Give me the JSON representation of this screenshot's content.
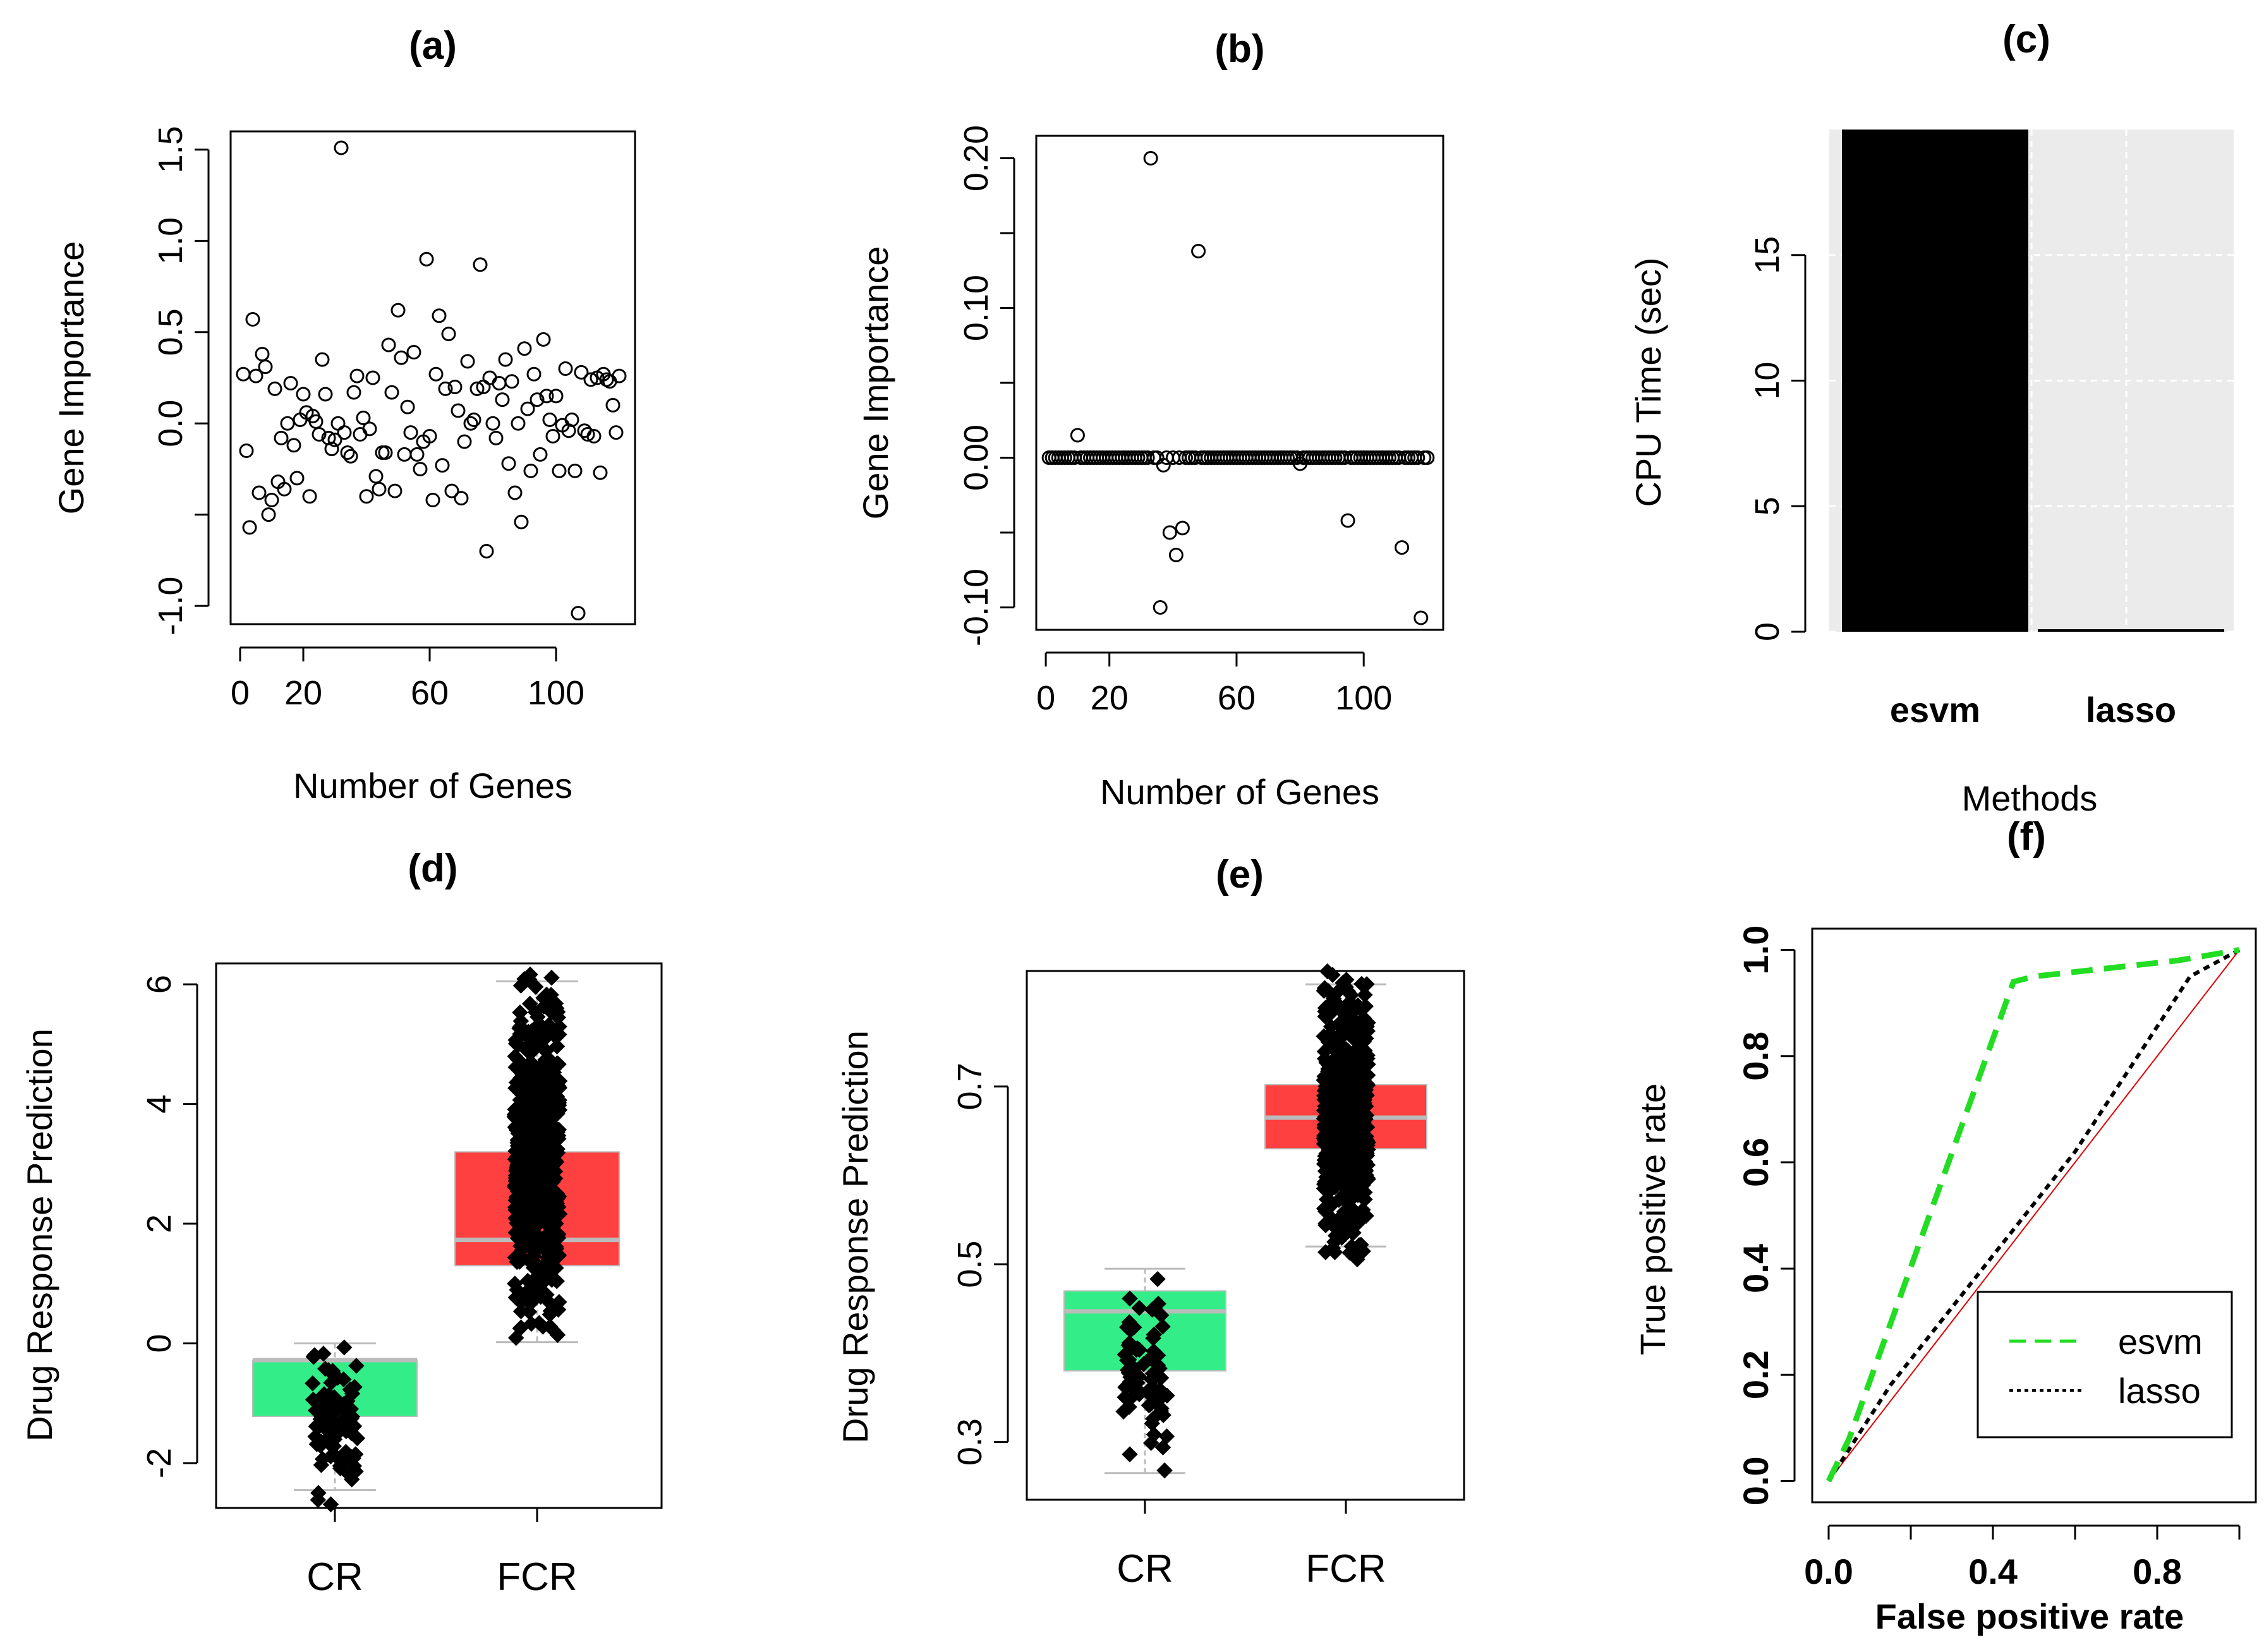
{
  "chart_data": [
    {
      "id": "a",
      "type": "scatter",
      "title": "(a)",
      "xlabel": "Number of Genes",
      "ylabel": "Gene Importance",
      "xlim": [
        -3,
        125
      ],
      "ylim": [
        -1.1,
        1.6
      ],
      "xticks": [
        0,
        20,
        60,
        100
      ],
      "xtick_labels": [
        "0",
        "20",
        "60",
        "100"
      ],
      "yticks": [
        -1.0,
        -0.5,
        0.0,
        0.5,
        1.0,
        1.5
      ],
      "ytick_labels": [
        "-1.0",
        "",
        "0.0",
        "0.5",
        "1.0",
        "1.5"
      ],
      "x": [
        1,
        2,
        3,
        4,
        5,
        6,
        7,
        8,
        9,
        10,
        11,
        12,
        13,
        14,
        15,
        16,
        17,
        18,
        19,
        20,
        21,
        22,
        23,
        24,
        25,
        26,
        27,
        28,
        29,
        30,
        31,
        32,
        33,
        34,
        35,
        36,
        37,
        38,
        39,
        40,
        41,
        42,
        43,
        44,
        45,
        46,
        47,
        48,
        49,
        50,
        51,
        52,
        53,
        54,
        55,
        56,
        57,
        58,
        59,
        60,
        61,
        62,
        63,
        64,
        65,
        66,
        67,
        68,
        69,
        70,
        71,
        72,
        73,
        74,
        75,
        76,
        77,
        78,
        79,
        80,
        81,
        82,
        83,
        84,
        85,
        86,
        87,
        88,
        89,
        90,
        91,
        92,
        93,
        94,
        95,
        96,
        97,
        98,
        99,
        100,
        101,
        102,
        103,
        104,
        105,
        106,
        107,
        108,
        109,
        110,
        111,
        112,
        113,
        114,
        115,
        116,
        117,
        118,
        119,
        120
      ],
      "y": [
        0.27,
        -0.15,
        -0.57,
        0.57,
        0.26,
        -0.38,
        0.38,
        0.31,
        -0.5,
        -0.42,
        0.19,
        -0.32,
        -0.08,
        -0.36,
        0.0,
        0.22,
        -0.12,
        -0.3,
        0.02,
        0.16,
        0.06,
        -0.4,
        0.04,
        0.01,
        -0.06,
        0.35,
        0.16,
        -0.08,
        -0.14,
        -0.09,
        0.0,
        1.51,
        -0.05,
        -0.16,
        -0.18,
        0.17,
        0.26,
        -0.06,
        0.03,
        -0.4,
        -0.03,
        0.25,
        -0.29,
        -0.36,
        -0.16,
        -0.16,
        0.43,
        0.17,
        -0.37,
        0.62,
        0.36,
        -0.17,
        0.09,
        -0.05,
        0.39,
        -0.17,
        -0.25,
        -0.1,
        0.9,
        -0.07,
        -0.42,
        0.27,
        0.59,
        -0.23,
        0.19,
        0.49,
        -0.37,
        0.2,
        0.07,
        -0.41,
        -0.1,
        0.34,
        0.0,
        0.02,
        0.19,
        0.87,
        0.2,
        -0.7,
        0.25,
        0.0,
        -0.08,
        0.22,
        0.13,
        0.35,
        -0.22,
        0.23,
        -0.38,
        0.0,
        -0.54,
        0.41,
        0.08,
        -0.26,
        0.27,
        0.13,
        -0.17,
        0.46,
        0.15,
        0.02,
        -0.07,
        0.15,
        -0.26,
        -0.01,
        0.3,
        -0.04,
        0.02,
        -0.26,
        -1.04,
        0.28,
        -0.04,
        -0.06,
        0.24,
        -0.07,
        0.25,
        -0.27,
        0.27,
        0.24,
        0.23,
        0.1,
        -0.05,
        0.26
      ]
    },
    {
      "id": "b",
      "type": "scatter",
      "title": "(b)",
      "xlabel": "Number of Genes",
      "ylabel": "Gene Importance",
      "xlim": [
        -3,
        125
      ],
      "ylim": [
        -0.115,
        0.215
      ],
      "xticks": [
        0,
        20,
        60,
        100
      ],
      "xtick_labels": [
        "0",
        "20",
        "60",
        "100"
      ],
      "yticks": [
        -0.1,
        -0.05,
        0.0,
        0.05,
        0.1,
        0.15,
        0.2
      ],
      "ytick_labels": [
        "-0.10",
        "",
        "0.00",
        "",
        "0.10",
        "",
        "0.20"
      ],
      "x": [
        1,
        2,
        3,
        4,
        5,
        6,
        7,
        8,
        9,
        10,
        11,
        12,
        13,
        14,
        15,
        16,
        17,
        18,
        19,
        20,
        21,
        22,
        23,
        24,
        25,
        26,
        27,
        28,
        29,
        30,
        31,
        32,
        33,
        34,
        35,
        36,
        37,
        38,
        39,
        40,
        41,
        42,
        43,
        44,
        45,
        46,
        47,
        48,
        49,
        50,
        51,
        52,
        53,
        54,
        55,
        56,
        57,
        58,
        59,
        60,
        61,
        62,
        63,
        64,
        65,
        66,
        67,
        68,
        69,
        70,
        71,
        72,
        73,
        74,
        75,
        76,
        77,
        78,
        79,
        80,
        81,
        82,
        83,
        84,
        85,
        86,
        87,
        88,
        89,
        90,
        91,
        92,
        93,
        94,
        95,
        96,
        97,
        98,
        99,
        100,
        101,
        102,
        103,
        104,
        105,
        106,
        107,
        108,
        109,
        110,
        111,
        112,
        113,
        114,
        115,
        116,
        117,
        118,
        119,
        120
      ],
      "y": [
        0,
        0,
        0,
        0,
        0,
        0,
        0,
        0,
        0,
        0.015,
        0,
        0,
        0,
        0,
        0,
        0,
        0,
        0,
        0,
        0,
        0,
        0,
        0,
        0,
        0,
        0,
        0,
        0,
        0,
        0,
        0,
        0,
        0.2,
        0,
        0,
        -0.1,
        -0.005,
        0,
        -0.05,
        0,
        -0.065,
        0,
        -0.047,
        0,
        0,
        0,
        0,
        0.138,
        0,
        0,
        0,
        0,
        0,
        0,
        0,
        0,
        0,
        0,
        0,
        0,
        0,
        0,
        0,
        0,
        0,
        0,
        0,
        0,
        0,
        0,
        0,
        0,
        0,
        0,
        0,
        0,
        0,
        0,
        0,
        -0.004,
        0,
        0,
        0,
        0,
        0,
        0,
        0,
        0,
        0,
        0,
        0,
        0,
        0,
        0,
        -0.042,
        0,
        0,
        0,
        0,
        0,
        0,
        0,
        0,
        0,
        0,
        0,
        0,
        0,
        0,
        0,
        0,
        -0.06,
        0,
        0,
        0,
        0,
        0,
        -0.107,
        0,
        0
      ]
    },
    {
      "id": "c",
      "type": "bar",
      "title": "(c)",
      "xlabel": "Methods",
      "ylabel": "CPU Time (sec)",
      "categories": [
        "esvm",
        "lasso"
      ],
      "values": [
        20,
        0.1
      ],
      "ylim": [
        0,
        20
      ],
      "yticks": [
        0,
        5,
        10,
        15
      ],
      "ytick_labels": [
        "0",
        "5",
        "10",
        "15"
      ],
      "colors": [
        "#000000",
        "#000000"
      ],
      "background": "#ebebeb",
      "grid": true
    },
    {
      "id": "d",
      "type": "box",
      "title": "(d)",
      "xlabel": "",
      "ylabel": "Drug Response Prediction",
      "categories": [
        "CR",
        "FCR"
      ],
      "ylim": [
        -2.75,
        6.35
      ],
      "yticks": [
        -2,
        0,
        2,
        4,
        6
      ],
      "ytick_labels": [
        "-2",
        "0",
        "2",
        "4",
        "6"
      ],
      "boxes": [
        {
          "name": "CR",
          "min": -2.45,
          "q1": -1.22,
          "median": -0.28,
          "q3": -0.28,
          "max": 0.0,
          "color": "#33ee88",
          "points_min": -2.7,
          "points_max": 0.0,
          "n_points": 90
        },
        {
          "name": "FCR",
          "min": 0.02,
          "q1": 1.3,
          "median": 1.73,
          "q3": 3.2,
          "max": 6.05,
          "color": "#ff4040",
          "points_min": 0.05,
          "points_max": 6.2,
          "n_points": 700
        }
      ]
    },
    {
      "id": "e",
      "type": "box",
      "title": "(e)",
      "xlabel": "",
      "ylabel": "Drug Response Prediction",
      "categories": [
        "CR",
        "FCR"
      ],
      "ylim": [
        0.235,
        0.83
      ],
      "yticks": [
        0.3,
        0.5,
        0.7
      ],
      "ytick_labels": [
        "0.3",
        "0.5",
        "0.7"
      ],
      "boxes": [
        {
          "name": "CR",
          "min": 0.265,
          "q1": 0.38,
          "median": 0.447,
          "q3": 0.47,
          "max": 0.495,
          "color": "#33ee88",
          "points_min": 0.265,
          "points_max": 0.495,
          "n_points": 70
        },
        {
          "name": "FCR",
          "min": 0.52,
          "q1": 0.63,
          "median": 0.665,
          "q3": 0.702,
          "max": 0.815,
          "color": "#ff4040",
          "points_min": 0.505,
          "points_max": 0.83,
          "n_points": 700
        }
      ]
    },
    {
      "id": "f",
      "type": "line",
      "title": "(f)",
      "xlabel": "False positive rate",
      "ylabel": "True positive rate",
      "xlim": [
        -0.04,
        1.04
      ],
      "ylim": [
        -0.04,
        1.04
      ],
      "xticks": [
        0.0,
        0.2,
        0.4,
        0.6,
        0.8,
        1.0
      ],
      "xtick_labels": [
        "0.0",
        "",
        "0.4",
        "",
        "0.8",
        ""
      ],
      "yticks": [
        0.0,
        0.2,
        0.4,
        0.6,
        0.8,
        1.0
      ],
      "ytick_labels": [
        "0.0",
        "0.2",
        "0.4",
        "0.6",
        "0.8",
        "1.0"
      ],
      "series": [
        {
          "name": "esvm",
          "color": "#22dd22",
          "dash": "dashed",
          "x": [
            0,
            0.05,
            0.45,
            0.5,
            0.85,
            1.0
          ],
          "y": [
            0,
            0.08,
            0.94,
            0.95,
            0.98,
            1.0
          ]
        },
        {
          "name": "lasso",
          "color": "#000000",
          "dash": "dotted",
          "x": [
            0,
            0.15,
            0.6,
            0.88,
            1.0
          ],
          "y": [
            0,
            0.18,
            0.62,
            0.95,
            1.0
          ]
        },
        {
          "name": "diagonal",
          "color": "#dd0000",
          "dash": "solid",
          "x": [
            0,
            1
          ],
          "y": [
            0,
            1
          ]
        }
      ],
      "legend": {
        "position": "bottom-right",
        "entries": [
          "esvm",
          "lasso"
        ]
      }
    }
  ]
}
